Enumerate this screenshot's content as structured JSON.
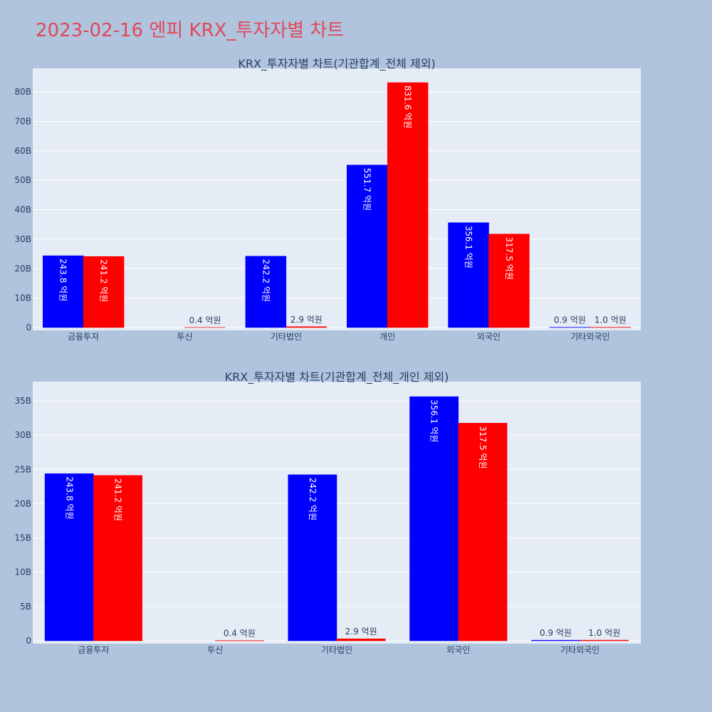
{
  "title": "2023-02-16 엔피 KRX_투자자별 차트",
  "colors": {
    "background": "#b0c4de",
    "plot": "#e5ecf6",
    "title": "#e0485a",
    "series_a": "#0000ff",
    "series_b": "#ff0000"
  },
  "chart_data": [
    {
      "type": "bar",
      "title": "KRX_투자자별 차트(기관합계_전체 제외)",
      "categories": [
        "금융투자",
        "투신",
        "기타법인",
        "개인",
        "외국인",
        "기타외국인"
      ],
      "series": [
        {
          "values": [
            24.38,
            0.0,
            24.22,
            55.17,
            35.61,
            0.09
          ],
          "labels": [
            "243.8 억원",
            "",
            "242.2 억원",
            "551.7 억원",
            "356.1 억원",
            "0.9 억원"
          ]
        },
        {
          "values": [
            24.12,
            0.04,
            0.29,
            83.16,
            31.75,
            0.1
          ],
          "labels": [
            "241.2 억원",
            "0.4 억원",
            "2.9 억원",
            "831.6 억원",
            "317.5 억원",
            "1.0 억원"
          ]
        }
      ],
      "yticks": [
        "0",
        "10B",
        "20B",
        "30B",
        "40B",
        "50B",
        "60B",
        "70B",
        "80B"
      ],
      "ytick_values": [
        0,
        10,
        20,
        30,
        40,
        50,
        60,
        70,
        80
      ],
      "ylim": [
        0,
        88
      ],
      "grid": true
    },
    {
      "type": "bar",
      "title": "KRX_투자자별 차트(기관합계_전체_개인 제외)",
      "categories": [
        "금융투자",
        "투신",
        "기타법인",
        "외국인",
        "기타외국인"
      ],
      "series": [
        {
          "values": [
            24.38,
            0.0,
            24.22,
            35.61,
            0.09
          ],
          "labels": [
            "243.8 억원",
            "",
            "242.2 억원",
            "356.1 억원",
            "0.9 억원"
          ]
        },
        {
          "values": [
            24.12,
            0.04,
            0.29,
            31.75,
            0.1
          ],
          "labels": [
            "241.2 억원",
            "0.4 억원",
            "2.9 억원",
            "317.5 억원",
            "1.0 억원"
          ]
        }
      ],
      "yticks": [
        "0",
        "5B",
        "10B",
        "15B",
        "20B",
        "25B",
        "30B",
        "35B"
      ],
      "ytick_values": [
        0,
        5,
        10,
        15,
        20,
        25,
        30,
        35
      ],
      "ylim": [
        0,
        37.8
      ],
      "grid": true
    }
  ]
}
